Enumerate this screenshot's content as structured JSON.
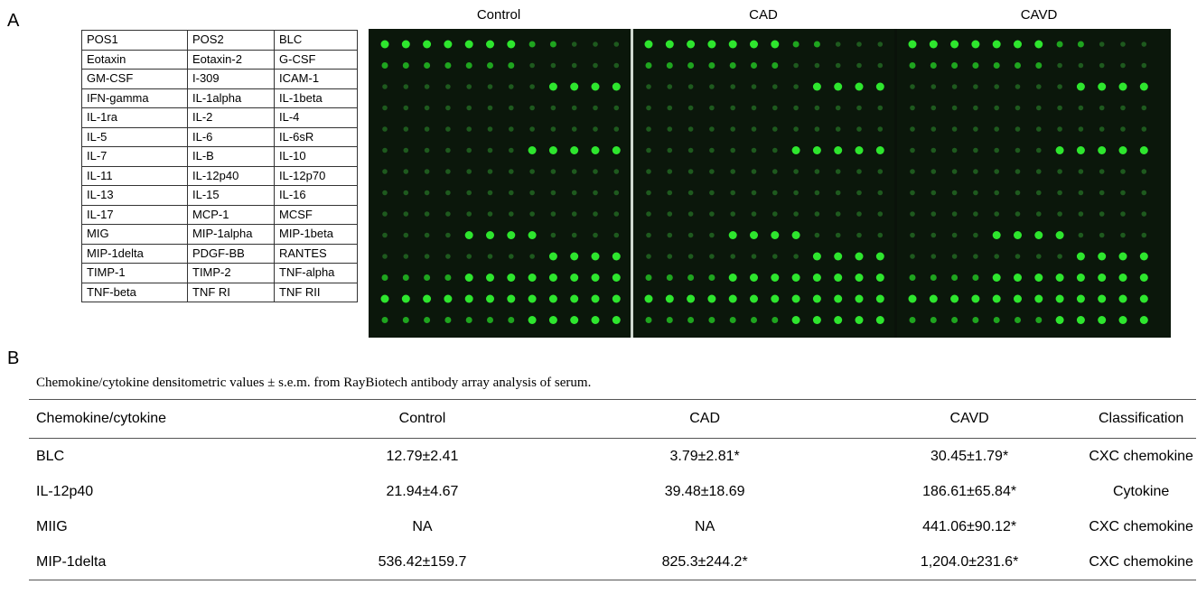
{
  "panel_a": {
    "label": "A",
    "array_titles": [
      "Control",
      "CAD",
      "CAVD"
    ],
    "map": [
      [
        "POS1",
        "POS2",
        "BLC"
      ],
      [
        "Eotaxin",
        "Eotaxin-2",
        "G-CSF"
      ],
      [
        "GM-CSF",
        "I-309",
        "ICAM-1"
      ],
      [
        "IFN-gamma",
        "IL-1alpha",
        "IL-1beta"
      ],
      [
        "IL-1ra",
        "IL-2",
        "IL-4"
      ],
      [
        "IL-5",
        "IL-6",
        "IL-6sR"
      ],
      [
        "IL-7",
        "IL-B",
        "IL-10"
      ],
      [
        "IL-11",
        "IL-12p40",
        "IL-12p70"
      ],
      [
        "IL-13",
        "IL-15",
        "IL-16"
      ],
      [
        "IL-17",
        "MCP-1",
        "MCSF"
      ],
      [
        "MIG",
        "MIP-1alpha",
        "MIP-1beta"
      ],
      [
        "MIP-1delta",
        "PDGF-BB",
        "RANTES"
      ],
      [
        "TIMP-1",
        "TIMP-2",
        "TNF-alpha"
      ],
      [
        "TNF-beta",
        "TNF RI",
        "TNF RII"
      ]
    ]
  },
  "panel_b": {
    "label": "B",
    "caption": "Chemokine/cytokine densitometric values ± s.e.m. from RayBiotech antibody array analysis of serum.",
    "header": [
      "Chemokine/cytokine",
      "Control",
      "CAD",
      "CAVD",
      "Classification"
    ],
    "rows": [
      [
        "BLC",
        "12.79±2.41",
        "3.79±2.81*",
        "30.45±1.79*",
        "CXC chemokine"
      ],
      [
        "IL-12p40",
        "21.94±4.67",
        "39.48±18.69",
        "186.61±65.84*",
        "Cytokine"
      ],
      [
        "MIIG",
        "NA",
        "NA",
        "441.06±90.12*",
        "CXC chemokine"
      ],
      [
        "MIP-1delta",
        "536.42±159.7",
        "825.3±244.2*",
        "1,204.0±231.6*",
        "CXC chemokine"
      ]
    ]
  }
}
